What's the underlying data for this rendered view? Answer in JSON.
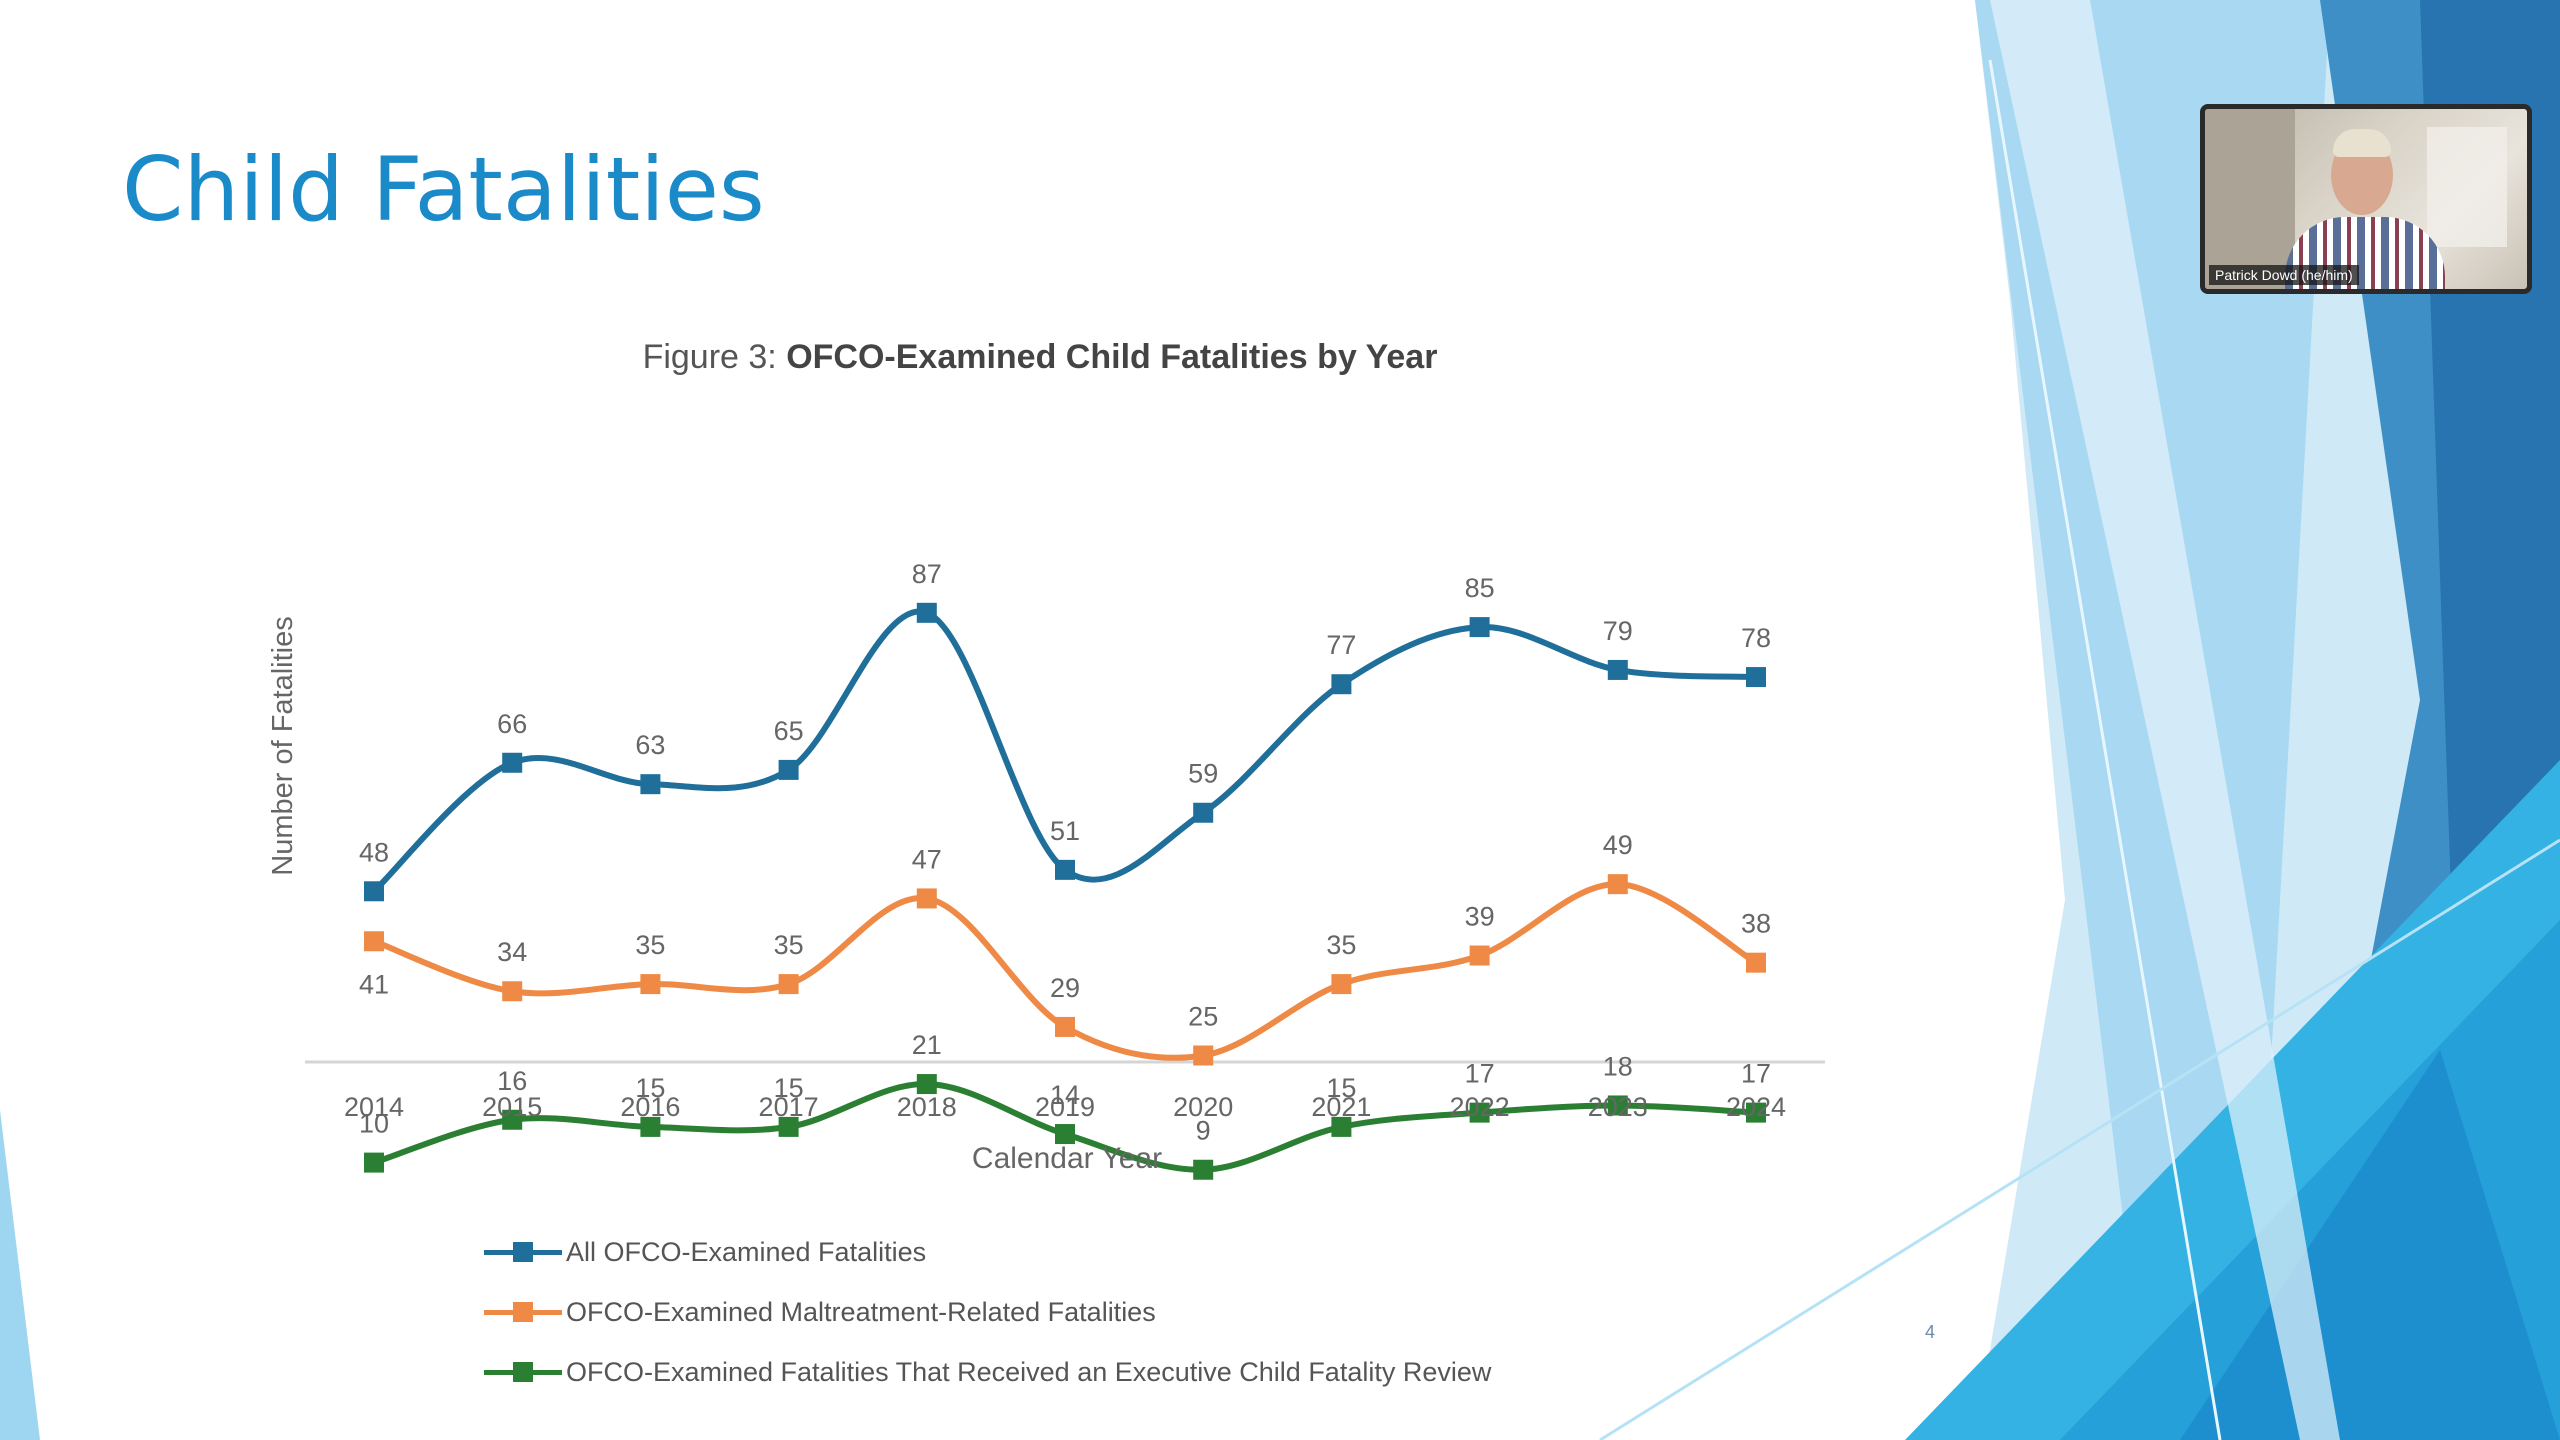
{
  "slide": {
    "title": "Child Fatalities",
    "page_number": "4"
  },
  "participant": {
    "name": "Patrick Dowd (he/him)"
  },
  "colors": {
    "title": "#1a8ac9",
    "series_all": "#1f6f9a",
    "series_maltreatment": "#ee8a45",
    "series_review": "#2a7f33"
  },
  "chart_data": {
    "type": "line",
    "title_prefix": "Figure 3:",
    "title": "OFCO-Examined Child Fatalities by Year",
    "xlabel": "Calendar Year",
    "ylabel": "Number of Fatalities",
    "x": [
      "2014",
      "2015",
      "2016",
      "2017",
      "2018",
      "2019",
      "2020",
      "2021",
      "2022",
      "2023",
      "2024"
    ],
    "ylim": [
      0,
      100
    ],
    "grid": false,
    "legend_position": "bottom-left",
    "series": [
      {
        "name": "All OFCO-Examined Fatalities",
        "color": "#1f6f9a",
        "values": [
          48,
          66,
          63,
          65,
          87,
          51,
          59,
          77,
          85,
          79,
          78
        ]
      },
      {
        "name": "OFCO-Examined Maltreatment-Related Fatalities",
        "color": "#ee8a45",
        "values": [
          41,
          34,
          35,
          35,
          47,
          29,
          25,
          35,
          39,
          49,
          38
        ]
      },
      {
        "name": "OFCO-Examined Fatalities That Received an Executive Child Fatality Review",
        "color": "#2a7f33",
        "values": [
          10,
          16,
          15,
          15,
          21,
          14,
          9,
          15,
          17,
          18,
          17
        ]
      }
    ]
  }
}
